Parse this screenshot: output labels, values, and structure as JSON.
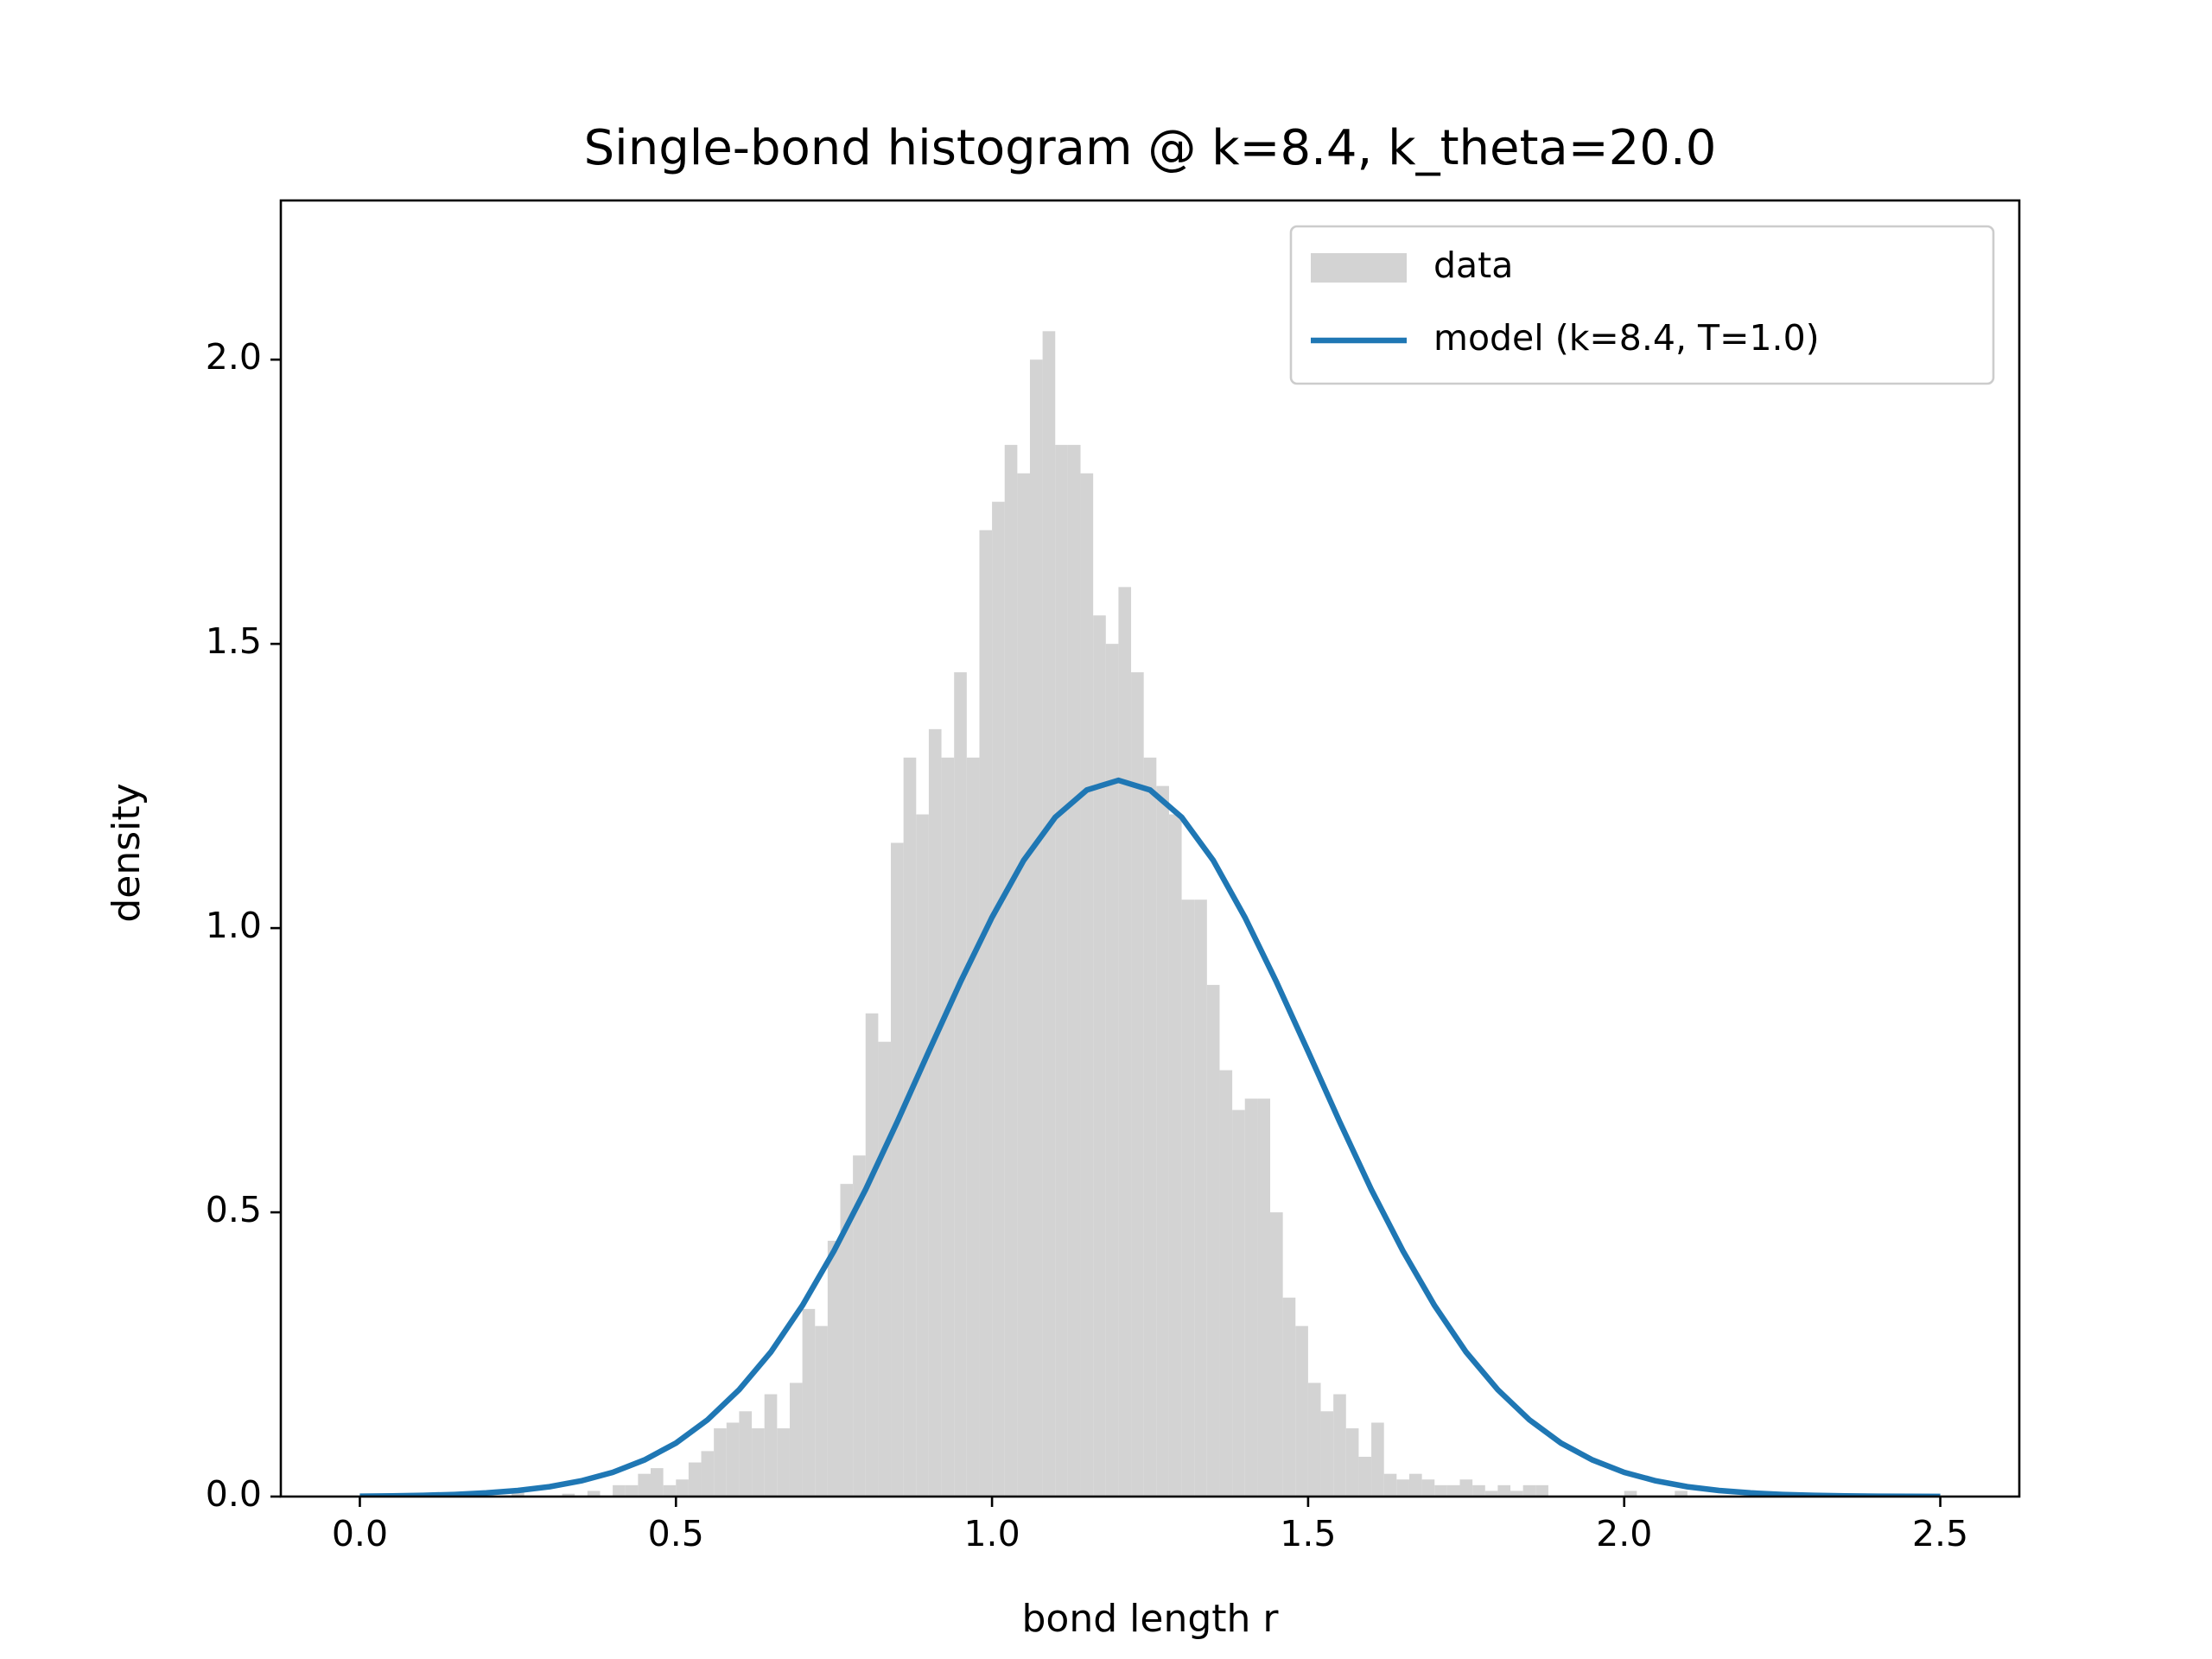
{
  "chart_data": {
    "type": "histogram",
    "title": "Single-bond histogram @ k=8.4, k_theta=20.0",
    "xlabel": "bond length r",
    "ylabel": "density",
    "xlim": [
      -0.125,
      2.625
    ],
    "ylim": [
      0,
      2.28
    ],
    "xticks": [
      {
        "value": 0,
        "label": "0.0"
      },
      {
        "value": 0.5,
        "label": "0.5"
      },
      {
        "value": 1,
        "label": "1.0"
      },
      {
        "value": 1.5,
        "label": "1.5"
      },
      {
        "value": 2,
        "label": "2.0"
      },
      {
        "value": 2.5,
        "label": "2.5"
      }
    ],
    "yticks": [
      {
        "value": 0,
        "label": "0.0"
      },
      {
        "value": 0.5,
        "label": "0.5"
      },
      {
        "value": 1,
        "label": "1.0"
      },
      {
        "value": 1.5,
        "label": "1.5"
      },
      {
        "value": 2,
        "label": "2.0"
      }
    ],
    "legend": "upper right",
    "series": [
      {
        "name": "data",
        "type": "histogram",
        "color": "#d3d3d3",
        "bins": [
          0.24,
          0.26,
          0.28,
          0.3,
          0.32,
          0.34,
          0.36,
          0.38,
          0.4,
          0.42,
          0.44,
          0.46,
          0.48,
          0.5,
          0.52,
          0.54,
          0.56,
          0.58,
          0.6,
          0.62,
          0.64,
          0.66,
          0.68,
          0.7,
          0.72,
          0.74,
          0.76,
          0.78,
          0.8,
          0.82,
          0.84,
          0.86,
          0.88,
          0.9,
          0.92,
          0.94,
          0.96,
          0.98,
          1.0,
          1.02,
          1.04,
          1.06,
          1.08,
          1.1,
          1.12,
          1.14,
          1.16,
          1.18,
          1.2,
          1.22,
          1.24,
          1.26,
          1.28,
          1.3,
          1.32,
          1.34,
          1.36,
          1.38,
          1.4,
          1.42,
          1.44,
          1.46,
          1.48,
          1.5,
          1.52,
          1.54,
          1.56,
          1.58,
          1.6,
          1.62,
          1.64,
          1.66,
          1.68,
          1.7,
          1.72,
          1.74,
          1.76,
          1.78,
          1.8,
          1.82,
          1.84,
          1.86,
          1.88,
          1.9,
          1.92,
          1.94,
          1.96,
          1.98,
          2.0,
          2.02,
          2.04,
          2.06,
          2.08,
          2.1
        ],
        "values": [
          0.01,
          0,
          0,
          0,
          0.005,
          0,
          0.01,
          0,
          0.02,
          0.02,
          0.04,
          0.05,
          0.02,
          0.03,
          0.06,
          0.08,
          0.12,
          0.13,
          0.15,
          0.12,
          0.18,
          0.12,
          0.2,
          0.33,
          0.3,
          0.45,
          0.55,
          0.6,
          0.85,
          0.8,
          1.15,
          1.3,
          1.2,
          1.35,
          1.3,
          1.45,
          1.3,
          1.7,
          1.75,
          1.85,
          1.8,
          2.0,
          2.05,
          1.85,
          1.85,
          1.8,
          1.55,
          1.5,
          1.6,
          1.45,
          1.3,
          1.25,
          1.2,
          1.05,
          1.05,
          0.9,
          0.75,
          0.68,
          0.7,
          0.7,
          0.5,
          0.35,
          0.3,
          0.2,
          0.15,
          0.18,
          0.12,
          0.07,
          0.13,
          0.04,
          0.03,
          0.04,
          0.03,
          0.02,
          0.02,
          0.03,
          0.02,
          0.01,
          0.02,
          0.01,
          0.02,
          0.02,
          0,
          0,
          0,
          0,
          0,
          0,
          0.01,
          0,
          0,
          0,
          0.01
        ]
      },
      {
        "name": "model (k=8.4, T=1.0)",
        "type": "line",
        "color": "#1f77b4",
        "x": [
          0,
          0.05,
          0.1,
          0.15,
          0.2,
          0.25,
          0.3,
          0.35,
          0.4,
          0.45,
          0.5,
          0.55,
          0.6,
          0.65,
          0.7,
          0.75,
          0.8,
          0.85,
          0.9,
          0.95,
          1.0,
          1.05,
          1.1,
          1.15,
          1.2,
          1.25,
          1.3,
          1.35,
          1.4,
          1.45,
          1.5,
          1.55,
          1.6,
          1.65,
          1.7,
          1.75,
          1.8,
          1.85,
          1.9,
          1.95,
          2.0,
          2.05,
          2.1,
          2.15,
          2.2,
          2.25,
          2.3,
          2.35,
          2.4,
          2.45,
          2.5
        ],
        "values": [
          0.0006,
          0.0011,
          0.0021,
          0.0037,
          0.0064,
          0.0106,
          0.0173,
          0.0276,
          0.0426,
          0.0643,
          0.094,
          0.135,
          0.188,
          0.254,
          0.336,
          0.432,
          0.54,
          0.659,
          0.783,
          0.905,
          1.019,
          1.119,
          1.195,
          1.243,
          1.26,
          1.243,
          1.195,
          1.119,
          1.019,
          0.905,
          0.783,
          0.659,
          0.54,
          0.432,
          0.336,
          0.254,
          0.188,
          0.135,
          0.094,
          0.0643,
          0.0426,
          0.0276,
          0.0173,
          0.0106,
          0.0064,
          0.0037,
          0.0021,
          0.0011,
          0.0006,
          0.0003,
          0.0002
        ]
      }
    ]
  }
}
